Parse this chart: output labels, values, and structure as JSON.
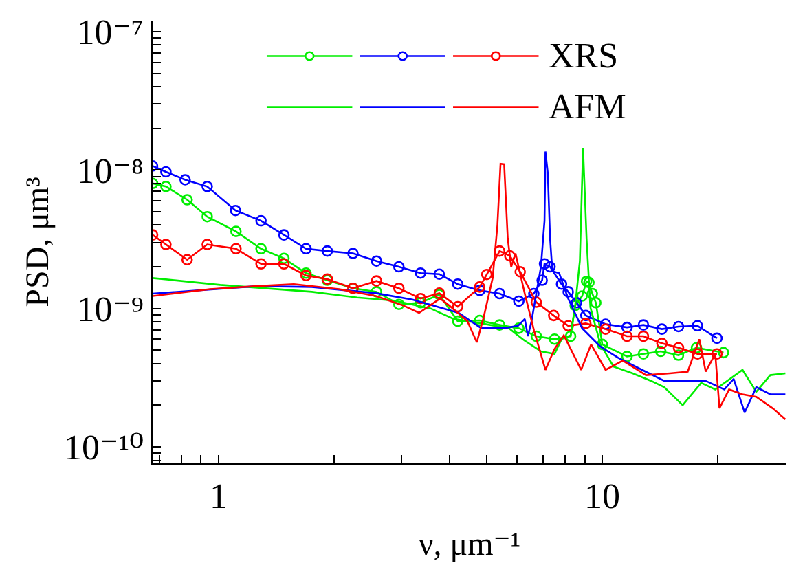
{
  "chart_data": {
    "type": "line",
    "xlabel": "ν, μm⁻¹",
    "ylabel": "PSD, μm³",
    "log": "xy",
    "grid": false,
    "legend": "top",
    "line_style": "solid",
    "xlim": [
      0.673,
      30.2
    ],
    "ylim": [
      7.6e-11,
      1.2e-07
    ],
    "xticks": [
      {
        "value": 0.7,
        "label": null
      },
      {
        "value": 0.8,
        "label": null
      },
      {
        "value": 0.9,
        "label": null
      },
      {
        "value": 1,
        "label": "1"
      },
      {
        "value": 2,
        "label": null
      },
      {
        "value": 3,
        "label": null
      },
      {
        "value": 4,
        "label": null
      },
      {
        "value": 5,
        "label": null
      },
      {
        "value": 6,
        "label": null
      },
      {
        "value": 7,
        "label": null
      },
      {
        "value": 8,
        "label": null
      },
      {
        "value": 9,
        "label": null
      },
      {
        "value": 10,
        "label": "10"
      },
      {
        "value": 20,
        "label": null
      }
    ],
    "yticks": [
      {
        "value": 8e-11,
        "label": null
      },
      {
        "value": 9e-11,
        "label": null
      },
      {
        "value": 1e-10,
        "label": "10⁻¹⁰"
      },
      {
        "value": 2e-10,
        "label": null
      },
      {
        "value": 3e-10,
        "label": null
      },
      {
        "value": 4e-10,
        "label": null
      },
      {
        "value": 5e-10,
        "label": null
      },
      {
        "value": 6e-10,
        "label": null
      },
      {
        "value": 7e-10,
        "label": null
      },
      {
        "value": 8e-10,
        "label": null
      },
      {
        "value": 9e-10,
        "label": null
      },
      {
        "value": 1e-09,
        "label": "10⁻⁹"
      },
      {
        "value": 2e-09,
        "label": null
      },
      {
        "value": 3e-09,
        "label": null
      },
      {
        "value": 4e-09,
        "label": null
      },
      {
        "value": 5e-09,
        "label": null
      },
      {
        "value": 6e-09,
        "label": null
      },
      {
        "value": 7e-09,
        "label": null
      },
      {
        "value": 8e-09,
        "label": null
      },
      {
        "value": 9e-09,
        "label": null
      },
      {
        "value": 1e-08,
        "label": "10⁻⁸"
      },
      {
        "value": 2e-08,
        "label": null
      },
      {
        "value": 3e-08,
        "label": null
      },
      {
        "value": 4e-08,
        "label": null
      },
      {
        "value": 5e-08,
        "label": null
      },
      {
        "value": 6e-08,
        "label": null
      },
      {
        "value": 7e-08,
        "label": null
      },
      {
        "value": 8e-08,
        "label": null
      },
      {
        "value": 9e-08,
        "label": null
      },
      {
        "value": 1e-07,
        "label": "10⁻⁷"
      }
    ],
    "series": [
      {
        "color": "#00ee00",
        "marker": "circle",
        "x": [
          0.673,
          0.729,
          0.828,
          0.934,
          1.11,
          1.29,
          1.48,
          1.69,
          1.92,
          2.24,
          2.58,
          2.95,
          3.36,
          3.76,
          4.2,
          4.79,
          5.4,
          6.06,
          6.73,
          7.51,
          8.27,
          8.5,
          8.86,
          9.1,
          9.23,
          9.42,
          9.62,
          10.0,
          11.6,
          12.8,
          14.2,
          15.8,
          17.6,
          20.7
        ],
        "values": [
          8e-09,
          7.6e-09,
          6.1e-09,
          4.6e-09,
          3.6e-09,
          2.7e-09,
          2.3e-09,
          1.8e-09,
          1.6e-09,
          1.4e-09,
          1.32e-09,
          1.07e-09,
          1.1e-09,
          1.26e-09,
          8.1e-10,
          8.2e-10,
          7.6e-10,
          7.2e-10,
          6.3e-10,
          6e-10,
          6.3e-10,
          1.05e-09,
          1.23e-09,
          1.57e-09,
          1.54e-09,
          1.28e-09,
          1.1e-09,
          5.5e-10,
          4.5e-10,
          4.7e-10,
          4.9e-10,
          4.6e-10,
          5.2e-10,
          4.8e-10
        ]
      },
      {
        "color": "#0000ff",
        "marker": "circle",
        "x": [
          0.673,
          0.729,
          0.818,
          0.934,
          1.107,
          1.29,
          1.48,
          1.69,
          1.92,
          2.24,
          2.58,
          2.95,
          3.36,
          3.76,
          4.2,
          4.79,
          5.4,
          6.06,
          6.63,
          6.97,
          7.07,
          7.31,
          7.83,
          8.15,
          8.57,
          9.06,
          10.2,
          11.6,
          12.8,
          14.3,
          15.8,
          17.7,
          19.9
        ],
        "values": [
          1.07e-08,
          9.7e-09,
          8.5e-09,
          7.6e-09,
          5.1e-09,
          4.3e-09,
          3.4e-09,
          2.7e-09,
          2.6e-09,
          2.5e-09,
          2.2e-09,
          2e-09,
          1.8e-09,
          1.77e-09,
          1.5e-09,
          1.35e-09,
          1.28e-09,
          1.13e-09,
          1.28e-09,
          1.6e-09,
          2.1e-09,
          2e-09,
          1.5e-09,
          1.32e-09,
          1.1e-09,
          8.9e-10,
          7.7e-10,
          7.3e-10,
          7.6e-10,
          7.1e-10,
          7.4e-10,
          7.5e-10,
          6.1e-10
        ]
      },
      {
        "name": "XRS",
        "color": "#ff0000",
        "marker": "circle",
        "x": [
          0.673,
          0.729,
          0.828,
          0.934,
          1.11,
          1.29,
          1.48,
          1.69,
          1.92,
          2.24,
          2.58,
          2.95,
          3.36,
          3.76,
          4.2,
          4.79,
          5.0,
          5.4,
          5.74,
          6.11,
          6.73,
          7.47,
          8.15,
          9.06,
          10.2,
          11.6,
          12.8,
          14.3,
          15.8,
          17.7,
          19.9
        ],
        "values": [
          3.4e-09,
          2.9e-09,
          2.25e-09,
          2.9e-09,
          2.7e-09,
          2.1e-09,
          2.1e-09,
          1.73e-09,
          1.63e-09,
          1.4e-09,
          1.58e-09,
          1.4e-09,
          1.18e-09,
          1.29e-09,
          1.03e-09,
          1.43e-09,
          1.76e-09,
          2.6e-09,
          2.4e-09,
          1.84e-09,
          1.11e-09,
          8.9e-10,
          7.5e-10,
          7.8e-10,
          7.1e-10,
          6.3e-10,
          6.3e-10,
          5.6e-10,
          5.2e-10,
          4.7e-10,
          4.7e-10
        ]
      },
      {
        "color": "#00ee00",
        "marker": "none",
        "x": [
          0.673,
          1.01,
          1.75,
          2.3,
          2.87,
          3.57,
          4.1,
          4.84,
          5.71,
          6.2,
          6.92,
          7.51,
          7.83,
          8.27,
          8.5,
          8.74,
          8.91,
          9.1,
          9.31,
          9.89,
          10.7,
          12.0,
          13.4,
          14.5,
          16.2,
          18.1,
          19.7,
          23.2,
          25.2,
          27.4,
          30
        ],
        "values": [
          1.66e-09,
          1.48e-09,
          1.32e-09,
          1.2e-09,
          1.14e-09,
          1e-09,
          8.4e-10,
          7.8e-10,
          7.2e-10,
          6e-10,
          4.9e-10,
          4.7e-10,
          6e-10,
          6.4e-10,
          1.05e-09,
          2.2e-09,
          1.44e-08,
          3.2e-09,
          1.02e-09,
          5.5e-10,
          3.8e-10,
          3.4e-10,
          3e-10,
          2.7e-10,
          2e-10,
          2.9e-10,
          2.6e-10,
          3.6e-10,
          2.5e-10,
          3.3e-10,
          3.4e-10
        ]
      },
      {
        "color": "#0000ff",
        "marker": "none",
        "x": [
          0.673,
          1.26,
          1.75,
          2.57,
          3.2,
          4.22,
          4.84,
          5.55,
          6.03,
          6.28,
          6.4,
          6.54,
          6.92,
          7.07,
          7.11,
          7.21,
          7.31,
          7.41,
          7.72,
          8.15,
          8.86,
          9.89,
          11.0,
          12.7,
          14.5,
          16.7,
          18.6,
          20.8,
          22.0,
          23.5,
          25.2,
          27.4,
          30
        ],
        "values": [
          1.28e-09,
          1.45e-09,
          1.43e-09,
          1.29e-09,
          1.16e-09,
          9.3e-10,
          7.2e-10,
          7.2e-10,
          7.5e-10,
          8.4e-10,
          6.3e-10,
          8.1e-10,
          2e-09,
          4.3e-09,
          1.36e-08,
          9.5e-09,
          3.2e-09,
          1.86e-09,
          1.8e-09,
          1.18e-09,
          7.2e-10,
          5.3e-10,
          4.4e-10,
          3.6e-10,
          3e-10,
          3e-10,
          3e-10,
          2.6e-10,
          3.1e-10,
          1.77e-10,
          2.7e-10,
          2.4e-10,
          2.4e-10
        ]
      },
      {
        "name": "AFM",
        "color": "#ff0000",
        "marker": "none",
        "x": [
          0.673,
          0.95,
          1.26,
          1.57,
          2.06,
          2.57,
          3.03,
          3.33,
          3.78,
          3.99,
          4.45,
          4.71,
          4.91,
          5.18,
          5.33,
          5.43,
          5.55,
          5.67,
          5.79,
          5.94,
          6.28,
          6.64,
          7.11,
          7.51,
          7.94,
          8.81,
          9.35,
          10.2,
          11.3,
          13.0,
          15.0,
          16.7,
          17.9,
          18.6,
          19.7,
          20.2,
          21.4,
          23.2,
          25.2,
          27.8,
          30
        ],
        "values": [
          1.23e-09,
          1.38e-09,
          1.45e-09,
          1.5e-09,
          1.38e-09,
          1.23e-09,
          1.05e-09,
          9.3e-10,
          1.18e-09,
          1.05e-09,
          8.1e-10,
          5.7e-10,
          8.7e-10,
          1.66e-09,
          4e-09,
          1.11e-08,
          1.1e-08,
          3.2e-09,
          2e-09,
          2.5e-09,
          1.28e-09,
          6.9e-10,
          3.6e-10,
          5.1e-10,
          6.4e-10,
          3.6e-10,
          5.5e-10,
          3.6e-10,
          4.2e-10,
          3.3e-10,
          3.4e-10,
          3.5e-10,
          6e-10,
          3.5e-10,
          4.7e-10,
          1.9e-10,
          2.6e-10,
          2.4e-10,
          2.3e-10,
          1.9e-10,
          1.58e-10
        ]
      }
    ]
  }
}
